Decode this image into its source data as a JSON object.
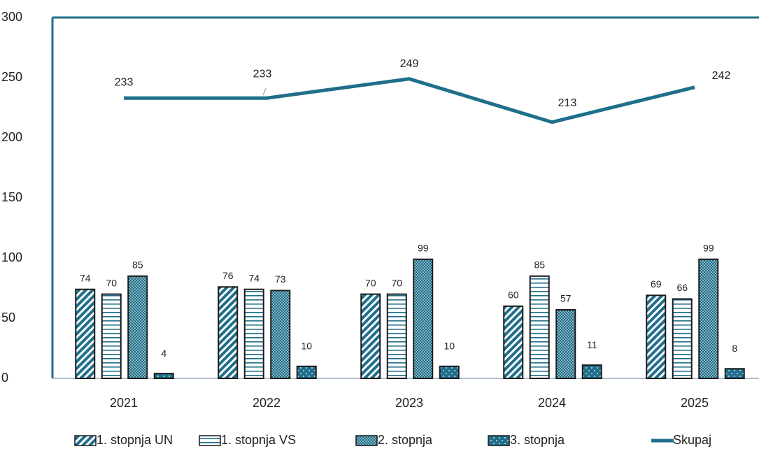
{
  "chart_data": {
    "type": "bar",
    "categories": [
      "2021",
      "2022",
      "2023",
      "2024",
      "2025"
    ],
    "ylim": [
      0,
      300
    ],
    "yticks": [
      0,
      50,
      100,
      150,
      200,
      250,
      300
    ],
    "grid": false,
    "legend": "bottom",
    "series": [
      {
        "name": "1. stopnja UN",
        "color": "#1f6f8b",
        "pattern": "diagonal",
        "values": [
          74,
          76,
          70,
          60,
          69
        ]
      },
      {
        "name": "1. stopnja VS",
        "color": "#1f6f8b",
        "pattern": "horizontal",
        "values": [
          70,
          74,
          70,
          85,
          66
        ]
      },
      {
        "name": "2. stopnja",
        "color": "#1f6f8b",
        "pattern": "dense-dots",
        "values": [
          85,
          73,
          99,
          57,
          99
        ]
      },
      {
        "name": "3. stopnja",
        "color": "#1f6f8b",
        "pattern": "sparse-dots",
        "values": [
          4,
          10,
          10,
          11,
          8
        ]
      },
      {
        "name": "Skupaj",
        "color": "#1f6f8b",
        "type": "line",
        "values": [
          233,
          233,
          249,
          213,
          242
        ]
      }
    ]
  }
}
